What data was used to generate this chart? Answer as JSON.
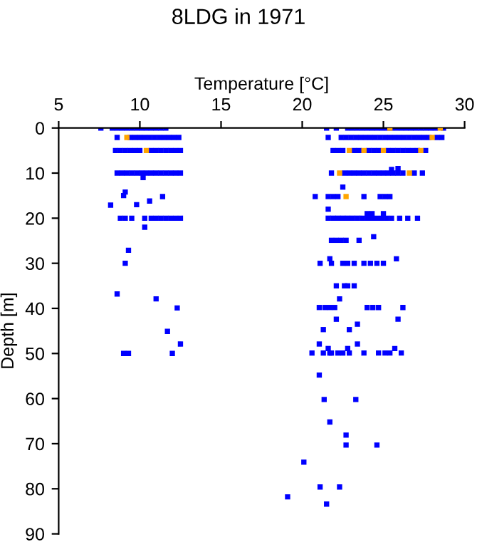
{
  "chart_data": {
    "type": "scatter",
    "title": "8LDG in 1971",
    "xlabel": "Temperature [°C]",
    "ylabel": "Depth [m]",
    "xlim": [
      5,
      30
    ],
    "xticks": [
      5,
      10,
      15,
      20,
      25,
      30
    ],
    "ylim": [
      90,
      0
    ],
    "yticks": [
      0,
      10,
      20,
      30,
      40,
      50,
      60,
      70,
      80,
      90
    ],
    "grid": false,
    "legend": false,
    "marker": "square",
    "series": [
      {
        "color": "#0000ff",
        "x": [
          7.6,
          8.3,
          8.6,
          8.9,
          9.2,
          9.5,
          9.8,
          10.1,
          10.4,
          10.7,
          11.0,
          11.3,
          11.6,
          21.5,
          22.1,
          22.8,
          23.1,
          23.4,
          23.7,
          24.0,
          24.3,
          24.6,
          24.9,
          25.2,
          25.5,
          25.8,
          26.1,
          26.4,
          26.7,
          27.0,
          27.3,
          27.6,
          27.9,
          28.2,
          28.7,
          8.6,
          9.4,
          9.7,
          10.0,
          10.3,
          10.6,
          10.9,
          11.2,
          11.5,
          11.8,
          12.1,
          12.4,
          21.6,
          22.4,
          22.7,
          23.0,
          23.3,
          23.6,
          23.9,
          24.2,
          24.5,
          24.8,
          25.1,
          25.4,
          25.7,
          26.0,
          26.3,
          26.6,
          26.9,
          27.2,
          27.5,
          27.8,
          28.3,
          28.6,
          8.5,
          8.8,
          9.1,
          9.4,
          9.7,
          10.0,
          10.7,
          11.0,
          11.3,
          11.6,
          11.9,
          12.2,
          12.5,
          21.9,
          22.2,
          22.5,
          23.2,
          23.5,
          24.1,
          24.4,
          24.7,
          25.3,
          25.6,
          25.9,
          26.2,
          26.5,
          26.8,
          27.1,
          27.6,
          8.6,
          8.9,
          9.2,
          9.5,
          9.8,
          10.1,
          10.4,
          10.7,
          11.0,
          11.3,
          11.6,
          11.9,
          12.2,
          12.5,
          21.8,
          22.6,
          22.9,
          23.2,
          23.5,
          23.8,
          24.1,
          24.4,
          24.7,
          25.0,
          25.3,
          25.6,
          25.9,
          26.2,
          26.9,
          27.4,
          10.2,
          25.5,
          25.9,
          9.1,
          9.0,
          8.2,
          9.8,
          10.6,
          11.4,
          22.5,
          20.8,
          21.6,
          21.9,
          22.2,
          23.8,
          24.8,
          25.1,
          25.4,
          21.6,
          24.0,
          24.3,
          25.0,
          8.8,
          9.1,
          9.5,
          10.3,
          10.7,
          11.0,
          11.3,
          11.6,
          11.9,
          12.2,
          12.5,
          21.6,
          21.9,
          22.2,
          22.5,
          22.8,
          23.1,
          23.4,
          23.7,
          24.0,
          24.3,
          24.6,
          24.9,
          25.2,
          25.5,
          26.0,
          26.5,
          27.1,
          10.3,
          9.3,
          9.1,
          8.6,
          11.0,
          12.3,
          11.7,
          12.5,
          9.0,
          9.3,
          12.0,
          24.4,
          21.8,
          22.1,
          22.4,
          22.7,
          23.5,
          21.7,
          25.8,
          21.1,
          21.8,
          22.5,
          22.8,
          23.2,
          23.8,
          24.2,
          24.6,
          25.0,
          22.1,
          22.6,
          22.8,
          23.2,
          22.3,
          21.05,
          21.4,
          21.7,
          22.0,
          24.0,
          24.35,
          24.7,
          26.2,
          22.1,
          25.9,
          23.4,
          21.3,
          22.9,
          21.05,
          23.4,
          21.6,
          22.8,
          25.7,
          20.6,
          21.3,
          21.7,
          21.8,
          22.2,
          22.5,
          22.9,
          23.8,
          24.7,
          25.1,
          25.4,
          26.1,
          21.05,
          21.35,
          23.3,
          21.7,
          22.7,
          22.7,
          24.6,
          20.1,
          21.1,
          22.3,
          19.1,
          21.5
        ],
        "values": [
          0,
          0,
          0,
          0,
          0,
          0,
          0,
          0,
          0,
          0,
          0,
          0,
          0,
          0,
          0,
          0,
          0,
          0,
          0,
          0,
          0,
          0,
          0,
          0,
          0,
          0,
          0,
          0,
          0,
          0,
          0,
          0,
          0,
          0,
          0,
          2.1,
          2.1,
          2.1,
          2.1,
          2.1,
          2.1,
          2.1,
          2.1,
          2.1,
          2.1,
          2.1,
          2.1,
          2.1,
          2.1,
          2.1,
          2.1,
          2.1,
          2.1,
          2.1,
          2.1,
          2.1,
          2.1,
          2.1,
          2.1,
          2.1,
          2.1,
          2.1,
          2.1,
          2.1,
          2.1,
          2.1,
          2.1,
          2.1,
          2.1,
          5,
          5,
          5,
          5,
          5,
          5,
          5,
          5,
          5,
          5,
          5,
          5,
          5,
          5,
          5,
          5,
          5,
          5,
          5,
          5,
          5,
          5,
          5,
          5,
          5,
          5,
          5,
          5,
          5,
          10,
          10,
          10,
          10,
          10,
          10,
          10,
          10,
          10,
          10,
          10,
          10,
          10,
          10,
          10,
          10,
          10,
          10,
          10,
          10,
          10,
          10,
          10,
          10,
          10,
          10,
          10,
          10,
          10,
          10,
          11.0,
          9.2,
          9.0,
          14.2,
          15.0,
          17.1,
          17.0,
          16.2,
          15.2,
          13.1,
          15.2,
          15.2,
          15.2,
          15.2,
          15.2,
          15.2,
          15.2,
          15.2,
          18.0,
          19.0,
          19.0,
          19.0,
          20,
          20,
          20,
          20,
          20,
          20,
          20,
          20,
          20,
          20,
          20,
          20,
          20,
          20,
          20,
          20,
          20,
          20,
          20,
          20,
          20,
          20,
          20,
          20,
          20,
          20,
          20,
          20,
          22.0,
          27.1,
          30.0,
          36.8,
          37.9,
          39.9,
          45.1,
          47.9,
          50.0,
          50.0,
          50.0,
          24.1,
          24.9,
          24.9,
          24.9,
          24.9,
          24.9,
          29.0,
          29.0,
          30.0,
          30.0,
          30.0,
          30.0,
          30.0,
          30.0,
          30.0,
          30.0,
          30.0,
          35.0,
          35.0,
          35.0,
          35.0,
          37.9,
          39.8,
          39.8,
          39.8,
          39.8,
          39.8,
          39.8,
          39.8,
          39.8,
          42.4,
          42.4,
          43.5,
          44.7,
          44.7,
          47.9,
          47.9,
          48.9,
          48.9,
          48.9,
          49.9,
          49.9,
          49.9,
          49.9,
          49.9,
          49.9,
          49.9,
          49.9,
          49.9,
          49.9,
          49.9,
          49.9,
          54.8,
          60.2,
          60.2,
          65.2,
          68.1,
          70.3,
          70.3,
          74.1,
          79.6,
          79.6,
          81.8,
          83.4
        ]
      },
      {
        "color": "#ffa500",
        "x": [
          25.4,
          28.5,
          9.2,
          28.0,
          10.4,
          22.9,
          23.8,
          25.0,
          27.3,
          22.3,
          26.6,
          22.7
        ],
        "values": [
          0,
          0,
          2.1,
          2.1,
          5,
          5,
          5,
          5,
          5,
          10,
          10,
          15.2
        ]
      }
    ]
  }
}
